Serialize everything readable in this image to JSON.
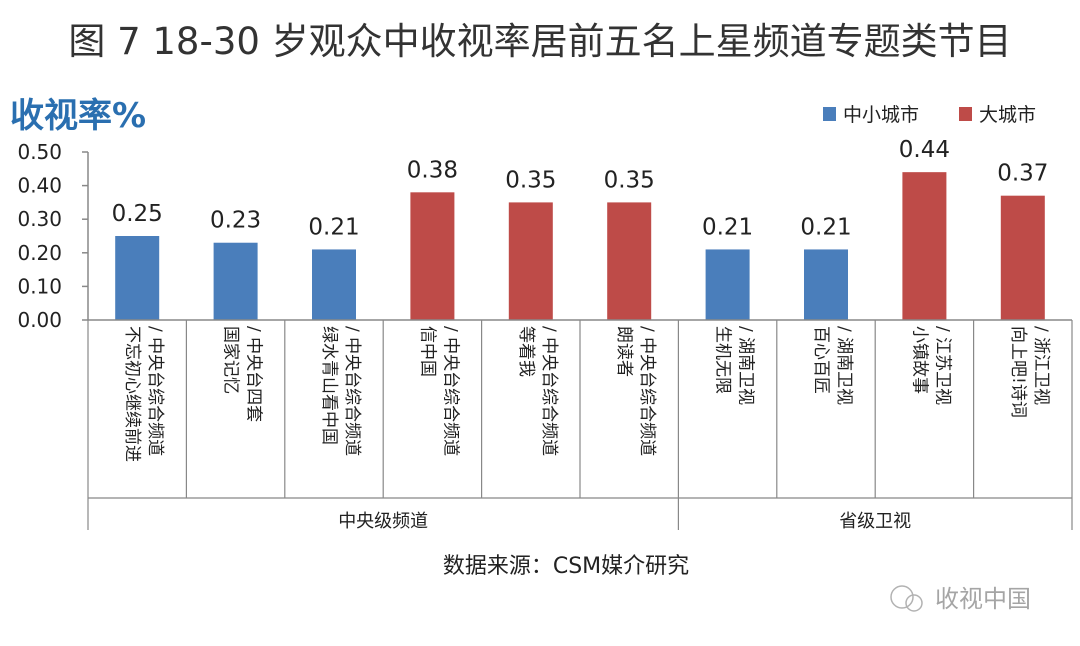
{
  "chart_data": {
    "type": "bar",
    "title": "图 7 18-30 岁观众中收视率居前五名上星频道专题类节目",
    "ylabel": "收视率%",
    "ylim": [
      0,
      0.5
    ],
    "yticks": [
      "0.50",
      "0.40",
      "0.30",
      "0.20",
      "0.10",
      "0.00"
    ],
    "ytick_values": [
      0.5,
      0.4,
      0.3,
      0.2,
      0.1,
      0.0
    ],
    "legend_position": "top-right",
    "legend": [
      {
        "name": "中小城市",
        "color": "#4a7ebb"
      },
      {
        "name": "大城市",
        "color": "#be4b48"
      }
    ],
    "categories": [
      {
        "line1": "不忘初心继续前进",
        "line2": "/ 中央台综合频道",
        "value": 0.25,
        "label": "0.25",
        "series": "中小城市"
      },
      {
        "line1": "国家记忆",
        "line2": "/ 中央台四套",
        "value": 0.23,
        "label": "0.23",
        "series": "中小城市"
      },
      {
        "line1": "绿水青山看中国",
        "line2": "/ 中央台综合频道",
        "value": 0.21,
        "label": "0.21",
        "series": "中小城市"
      },
      {
        "line1": "信中国",
        "line2": "/ 中央台综合频道",
        "value": 0.38,
        "label": "0.38",
        "series": "大城市"
      },
      {
        "line1": "等着我",
        "line2": "/ 中央台综合频道",
        "value": 0.35,
        "label": "0.35",
        "series": "大城市"
      },
      {
        "line1": "朗读者",
        "line2": "/ 中央台综合频道",
        "value": 0.35,
        "label": "0.35",
        "series": "大城市"
      },
      {
        "line1": "生机无限",
        "line2": "/ 湖南卫视",
        "value": 0.21,
        "label": "0.21",
        "series": "中小城市"
      },
      {
        "line1": "百心百匠",
        "line2": "/ 湖南卫视",
        "value": 0.21,
        "label": "0.21",
        "series": "中小城市"
      },
      {
        "line1": "小镇故事",
        "line2": "/ 江苏卫视",
        "value": 0.44,
        "label": "0.44",
        "series": "大城市"
      },
      {
        "line1": "向上吧!诗词",
        "line2": "/ 浙江卫视",
        "value": 0.37,
        "label": "0.37",
        "series": "大城市"
      }
    ],
    "groups": [
      {
        "label": "中央级频道",
        "span": [
          0,
          5
        ]
      },
      {
        "label": "省级卫视",
        "span": [
          6,
          9
        ]
      }
    ],
    "source": "数据来源：CSM媒介研究",
    "watermark": "收视中国"
  },
  "colors": {
    "title": "#333333",
    "ylabel": "#2a6fb0",
    "axis": "#888888"
  }
}
